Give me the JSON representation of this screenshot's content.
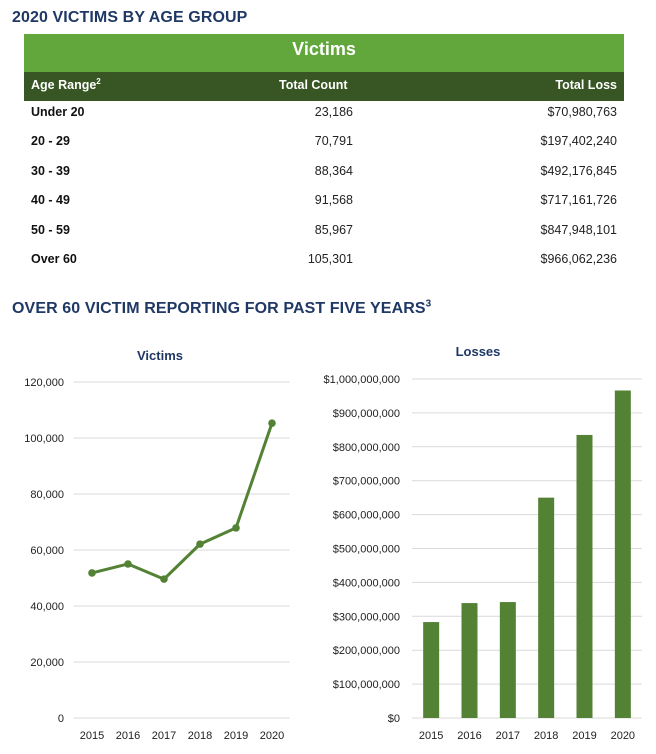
{
  "table_section": {
    "title": "2020 VICTIMS BY AGE GROUP",
    "band_label": "Victims",
    "headers": {
      "age_range": "Age Range",
      "age_range_footnote": "2",
      "total_count": "Total Count",
      "total_loss": "Total Loss"
    },
    "rows": [
      {
        "age_range": "Under 20",
        "total_count": "23,186",
        "total_loss": "$70,980,763"
      },
      {
        "age_range": "20 - 29",
        "total_count": "70,791",
        "total_loss": "$197,402,240"
      },
      {
        "age_range": "30 - 39",
        "total_count": "88,364",
        "total_loss": "$492,176,845"
      },
      {
        "age_range": "40 - 49",
        "total_count": "91,568",
        "total_loss": "$717,161,726"
      },
      {
        "age_range": "50 - 59",
        "total_count": "85,967",
        "total_loss": "$847,948,101"
      },
      {
        "age_range": "Over 60",
        "total_count": "105,301",
        "total_loss": "$966,062,236"
      }
    ]
  },
  "charts_section": {
    "title": "OVER 60 VICTIM REPORTING FOR PAST FIVE YEARS",
    "title_footnote": "3"
  },
  "colors": {
    "title": "#1f3864",
    "band_green": "#62a73b",
    "header_dark_green": "#375623",
    "series_green": "#548235",
    "gridline": "#d9d9d9"
  },
  "chart_data": [
    {
      "type": "line",
      "title": "Victims",
      "xlabel": "",
      "ylabel": "",
      "categories": [
        "2015",
        "2016",
        "2017",
        "2018",
        "2019",
        "2020"
      ],
      "values": [
        51800,
        55000,
        49600,
        62100,
        67900,
        105301
      ],
      "ylim": [
        0,
        120000
      ],
      "yticks": [
        0,
        20000,
        40000,
        60000,
        80000,
        100000,
        120000
      ],
      "ytick_labels": [
        "0",
        "20,000",
        "40,000",
        "60,000",
        "80,000",
        "100,000",
        "120,000"
      ],
      "grid": true,
      "legend": "none"
    },
    {
      "type": "bar",
      "title": "Losses",
      "xlabel": "",
      "ylabel": "",
      "categories": [
        "2015",
        "2016",
        "2017",
        "2018",
        "2019",
        "2020"
      ],
      "values": [
        283000000,
        339000000,
        342000000,
        650000000,
        835000000,
        966062236
      ],
      "ylim": [
        0,
        1000000000
      ],
      "yticks": [
        0,
        100000000,
        200000000,
        300000000,
        400000000,
        500000000,
        600000000,
        700000000,
        800000000,
        900000000,
        1000000000
      ],
      "ytick_labels": [
        "$0",
        "$100,000,000",
        "$200,000,000",
        "$300,000,000",
        "$400,000,000",
        "$500,000,000",
        "$600,000,000",
        "$700,000,000",
        "$800,000,000",
        "$900,000,000",
        "$1,000,000,000"
      ],
      "grid": true,
      "legend": "none"
    }
  ]
}
